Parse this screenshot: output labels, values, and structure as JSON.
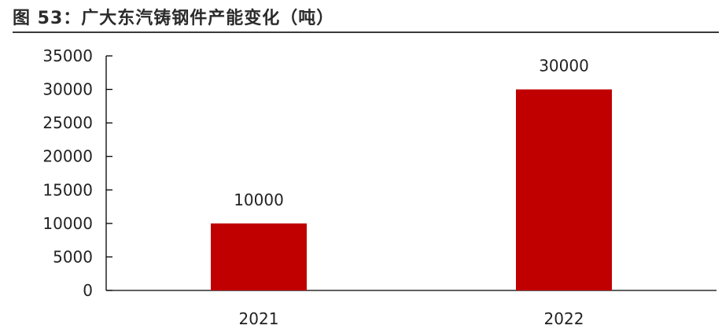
{
  "title": "图 53：广大东汽铸钢件产能变化（吨）",
  "chart_data": {
    "type": "bar",
    "categories": [
      "2021",
      "2022"
    ],
    "values": [
      10000,
      30000
    ],
    "data_labels": [
      "10000",
      "30000"
    ],
    "title": "图 53：广大东汽铸钢件产能变化（吨）",
    "xlabel": "",
    "ylabel": "",
    "ylim": [
      0,
      35000
    ],
    "yticks": [
      0,
      5000,
      10000,
      15000,
      20000,
      25000,
      30000,
      35000
    ],
    "ytick_labels": [
      "0",
      "5000",
      "10000",
      "15000",
      "20000",
      "25000",
      "30000",
      "35000"
    ],
    "grid": false,
    "legend": "none",
    "bar_color": "#c00000"
  }
}
